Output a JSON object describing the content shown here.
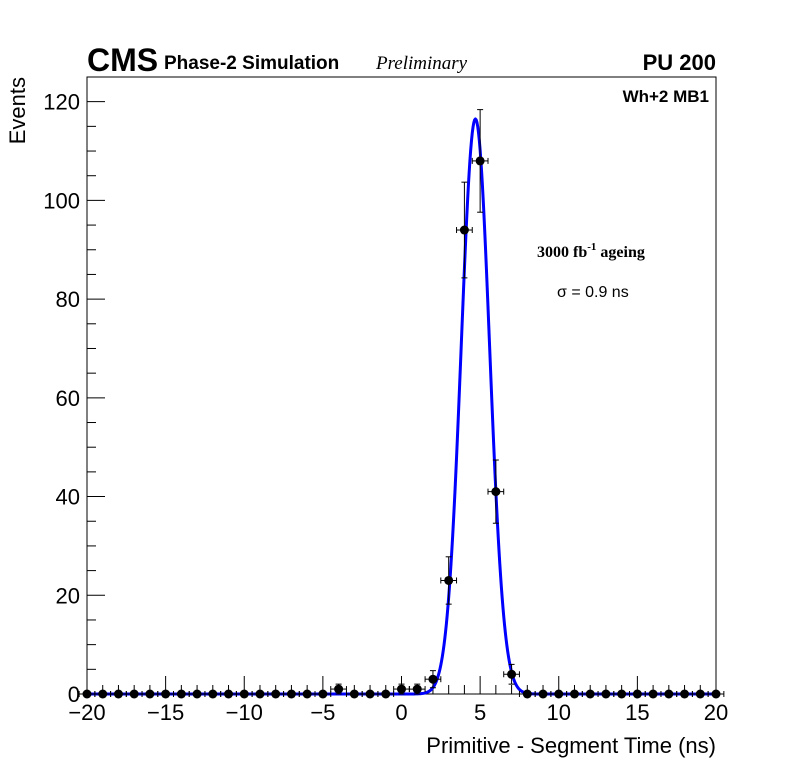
{
  "header": {
    "experiment": "CMS",
    "subtitle": "Phase-2 Simulation",
    "status": "Preliminary",
    "pileup": "PU 200"
  },
  "annotations": {
    "station": "Wh+2 MB1",
    "ageing_prefix": "3000 fb",
    "ageing_exp": "-1",
    "ageing_suffix": " ageing",
    "sigma_label": "σ = 0.9 ns"
  },
  "chart_data": {
    "type": "scatter",
    "title": "",
    "xlabel": "Primitive - Segment Time (ns)",
    "ylabel": "Events",
    "xlim": [
      -20,
      20
    ],
    "ylim": [
      0,
      125
    ],
    "x_ticks": [
      -20,
      -15,
      -10,
      -5,
      0,
      5,
      10,
      15,
      20
    ],
    "x_tick_labels": [
      "−20",
      "−15",
      "−10",
      "−5",
      "0",
      "5",
      "10",
      "15",
      "20"
    ],
    "y_ticks": [
      0,
      20,
      40,
      60,
      80,
      100,
      120
    ],
    "y_tick_labels": [
      "0",
      "20",
      "40",
      "60",
      "80",
      "100",
      "120"
    ],
    "bin_width": 1,
    "series": [
      {
        "name": "Simulation",
        "color": "#000000",
        "x": [
          -20,
          -19,
          -18,
          -17,
          -16,
          -15,
          -14,
          -13,
          -12,
          -11,
          -10,
          -9,
          -8,
          -7,
          -6,
          -5,
          -4,
          -3,
          -2,
          -1,
          0,
          1,
          2,
          3,
          4,
          5,
          6,
          7,
          8,
          9,
          10,
          11,
          12,
          13,
          14,
          15,
          16,
          17,
          18,
          19,
          20
        ],
        "y": [
          0,
          0,
          0,
          0,
          0,
          0,
          0,
          0,
          0,
          0,
          0,
          0,
          0,
          0,
          0,
          0,
          1,
          0,
          0,
          0,
          1,
          1,
          3,
          23,
          94,
          108,
          41,
          4,
          0,
          0,
          0,
          0,
          0,
          0,
          0,
          0,
          0,
          0,
          0,
          0,
          0
        ]
      },
      {
        "name": "Gaussian fit",
        "color": "#0000ff",
        "type": "line",
        "amplitude": 116.5,
        "mean": 4.7,
        "sigma": 0.9
      }
    ]
  }
}
